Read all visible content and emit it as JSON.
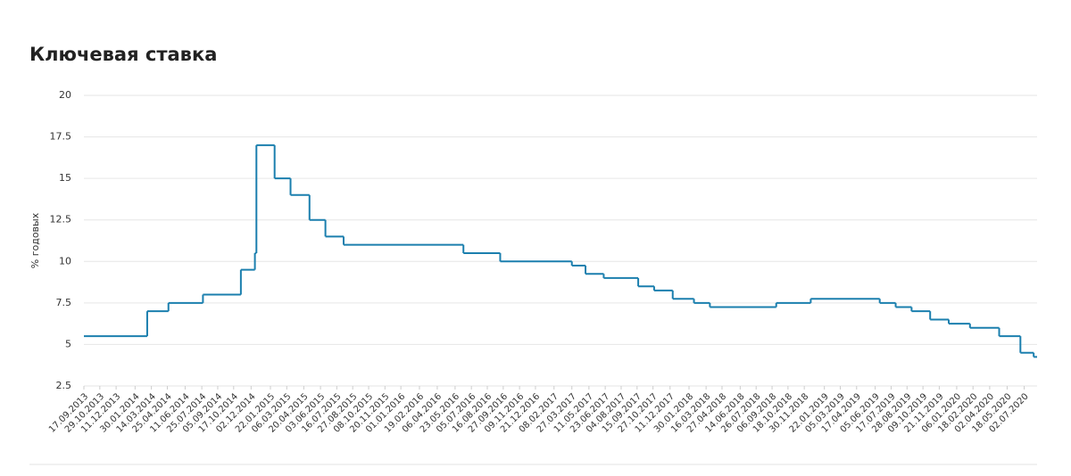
{
  "chart_data": {
    "type": "step-line",
    "title": "Ключевая ставка",
    "y_label": "% годовых",
    "x": [
      "17.09.2013",
      "03.03.2014",
      "28.04.2014",
      "28.07.2014",
      "05.11.2014",
      "12.12.2014",
      "16.12.2014",
      "02.02.2015",
      "16.03.2015",
      "05.05.2015",
      "16.06.2015",
      "03.08.2015",
      "14.06.2016",
      "19.09.2016",
      "27.03.2017",
      "02.05.2017",
      "19.06.2017",
      "18.09.2017",
      "30.10.2017",
      "18.12.2017",
      "12.02.2018",
      "26.03.2018",
      "17.09.2018",
      "17.12.2018",
      "17.06.2019",
      "29.07.2019",
      "09.09.2019",
      "28.10.2019",
      "16.12.2019",
      "10.02.2020",
      "27.04.2020",
      "22.06.2020",
      "27.07.2020"
    ],
    "series": [
      {
        "name": "Ключевая ставка",
        "color": "#1b7fae",
        "values": [
          5.5,
          7,
          7.5,
          8,
          9.5,
          10.5,
          17,
          15,
          14,
          12.5,
          11.5,
          11,
          10.5,
          10,
          9.75,
          9.25,
          9,
          8.5,
          8.25,
          7.75,
          7.5,
          7.25,
          7.5,
          7.75,
          7.5,
          7.25,
          7,
          6.5,
          6.25,
          6,
          5.5,
          4.5,
          4.25
        ]
      }
    ],
    "xlim": [
      "17.09.2013",
      "05.08.2020"
    ],
    "xticks": [
      "17.09.2013",
      "29.10.2013",
      "11.12.2013",
      "30.01.2014",
      "14.03.2014",
      "25.04.2014",
      "11.06.2014",
      "25.07.2014",
      "05.09.2014",
      "17.10.2014",
      "02.12.2014",
      "22.01.2015",
      "06.03.2015",
      "20.04.2015",
      "03.06.2015",
      "16.07.2015",
      "27.08.2015",
      "08.10.2015",
      "20.11.2015",
      "01.01.2016",
      "19.02.2016",
      "06.04.2016",
      "23.05.2016",
      "05.07.2016",
      "16.08.2016",
      "27.09.2016",
      "09.11.2016",
      "21.12.2016",
      "08.02.2017",
      "27.03.2017",
      "11.05.2017",
      "23.06.2017",
      "04.08.2017",
      "15.09.2017",
      "27.10.2017",
      "11.12.2017",
      "30.01.2018",
      "16.03.2018",
      "27.04.2018",
      "14.06.2018",
      "26.07.2018",
      "06.09.2018",
      "18.10.2018",
      "30.11.2018",
      "22.01.2019",
      "05.03.2019",
      "17.04.2019",
      "05.06.2019",
      "17.07.2019",
      "28.08.2019",
      "09.10.2019",
      "21.11.2019",
      "06.01.2020",
      "18.02.2020",
      "02.04.2020",
      "18.05.2020",
      "02.07.2020"
    ],
    "ylim": [
      2.5,
      20
    ],
    "yticks": [
      2.5,
      5,
      7.5,
      10,
      12.5,
      15,
      17.5,
      20
    ],
    "grid": true
  }
}
